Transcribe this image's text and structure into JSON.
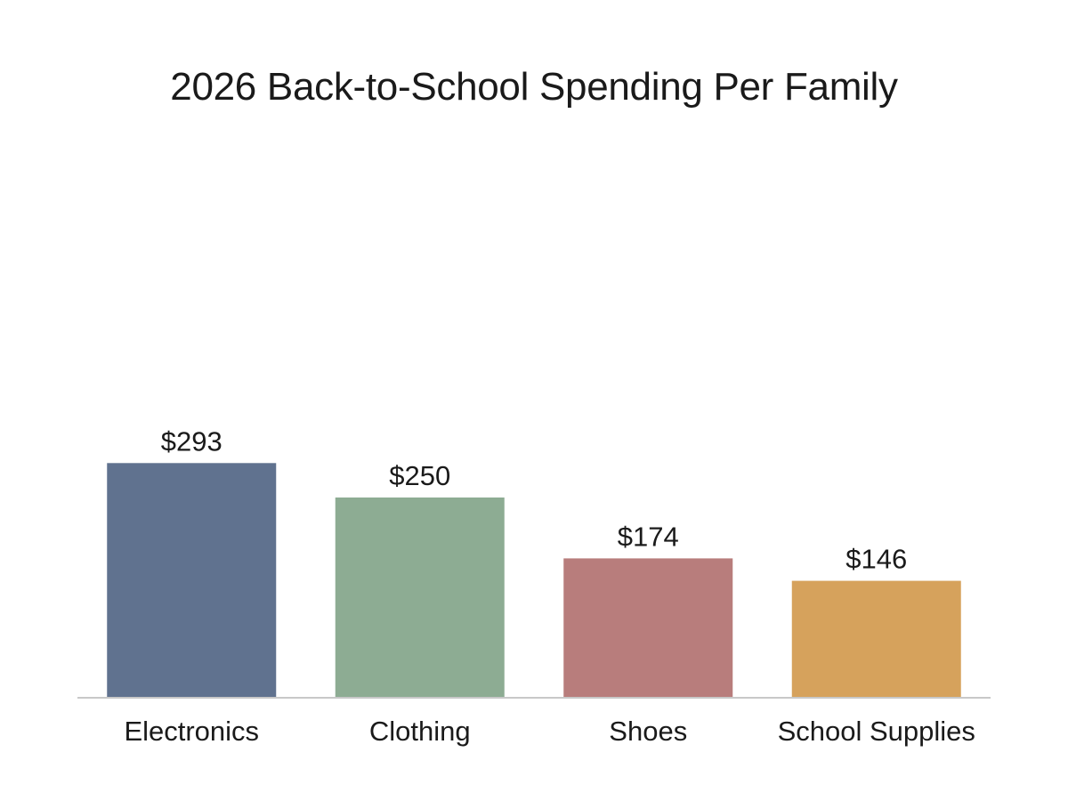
{
  "chart_data": {
    "type": "bar",
    "title": "2026 Back-to-School Spending Per Family",
    "categories": [
      "Electronics",
      "Clothing",
      "Shoes",
      "School Supplies"
    ],
    "values": [
      293,
      250,
      174,
      146
    ],
    "value_labels": [
      "$293",
      "$250",
      "$174",
      "$146"
    ],
    "colors": [
      "#60728f",
      "#8dac93",
      "#b87d7c",
      "#d6a25c"
    ],
    "axis_color": "#c8c8c8",
    "ylim": [
      0,
      300
    ],
    "grid": false,
    "legend": "none"
  }
}
